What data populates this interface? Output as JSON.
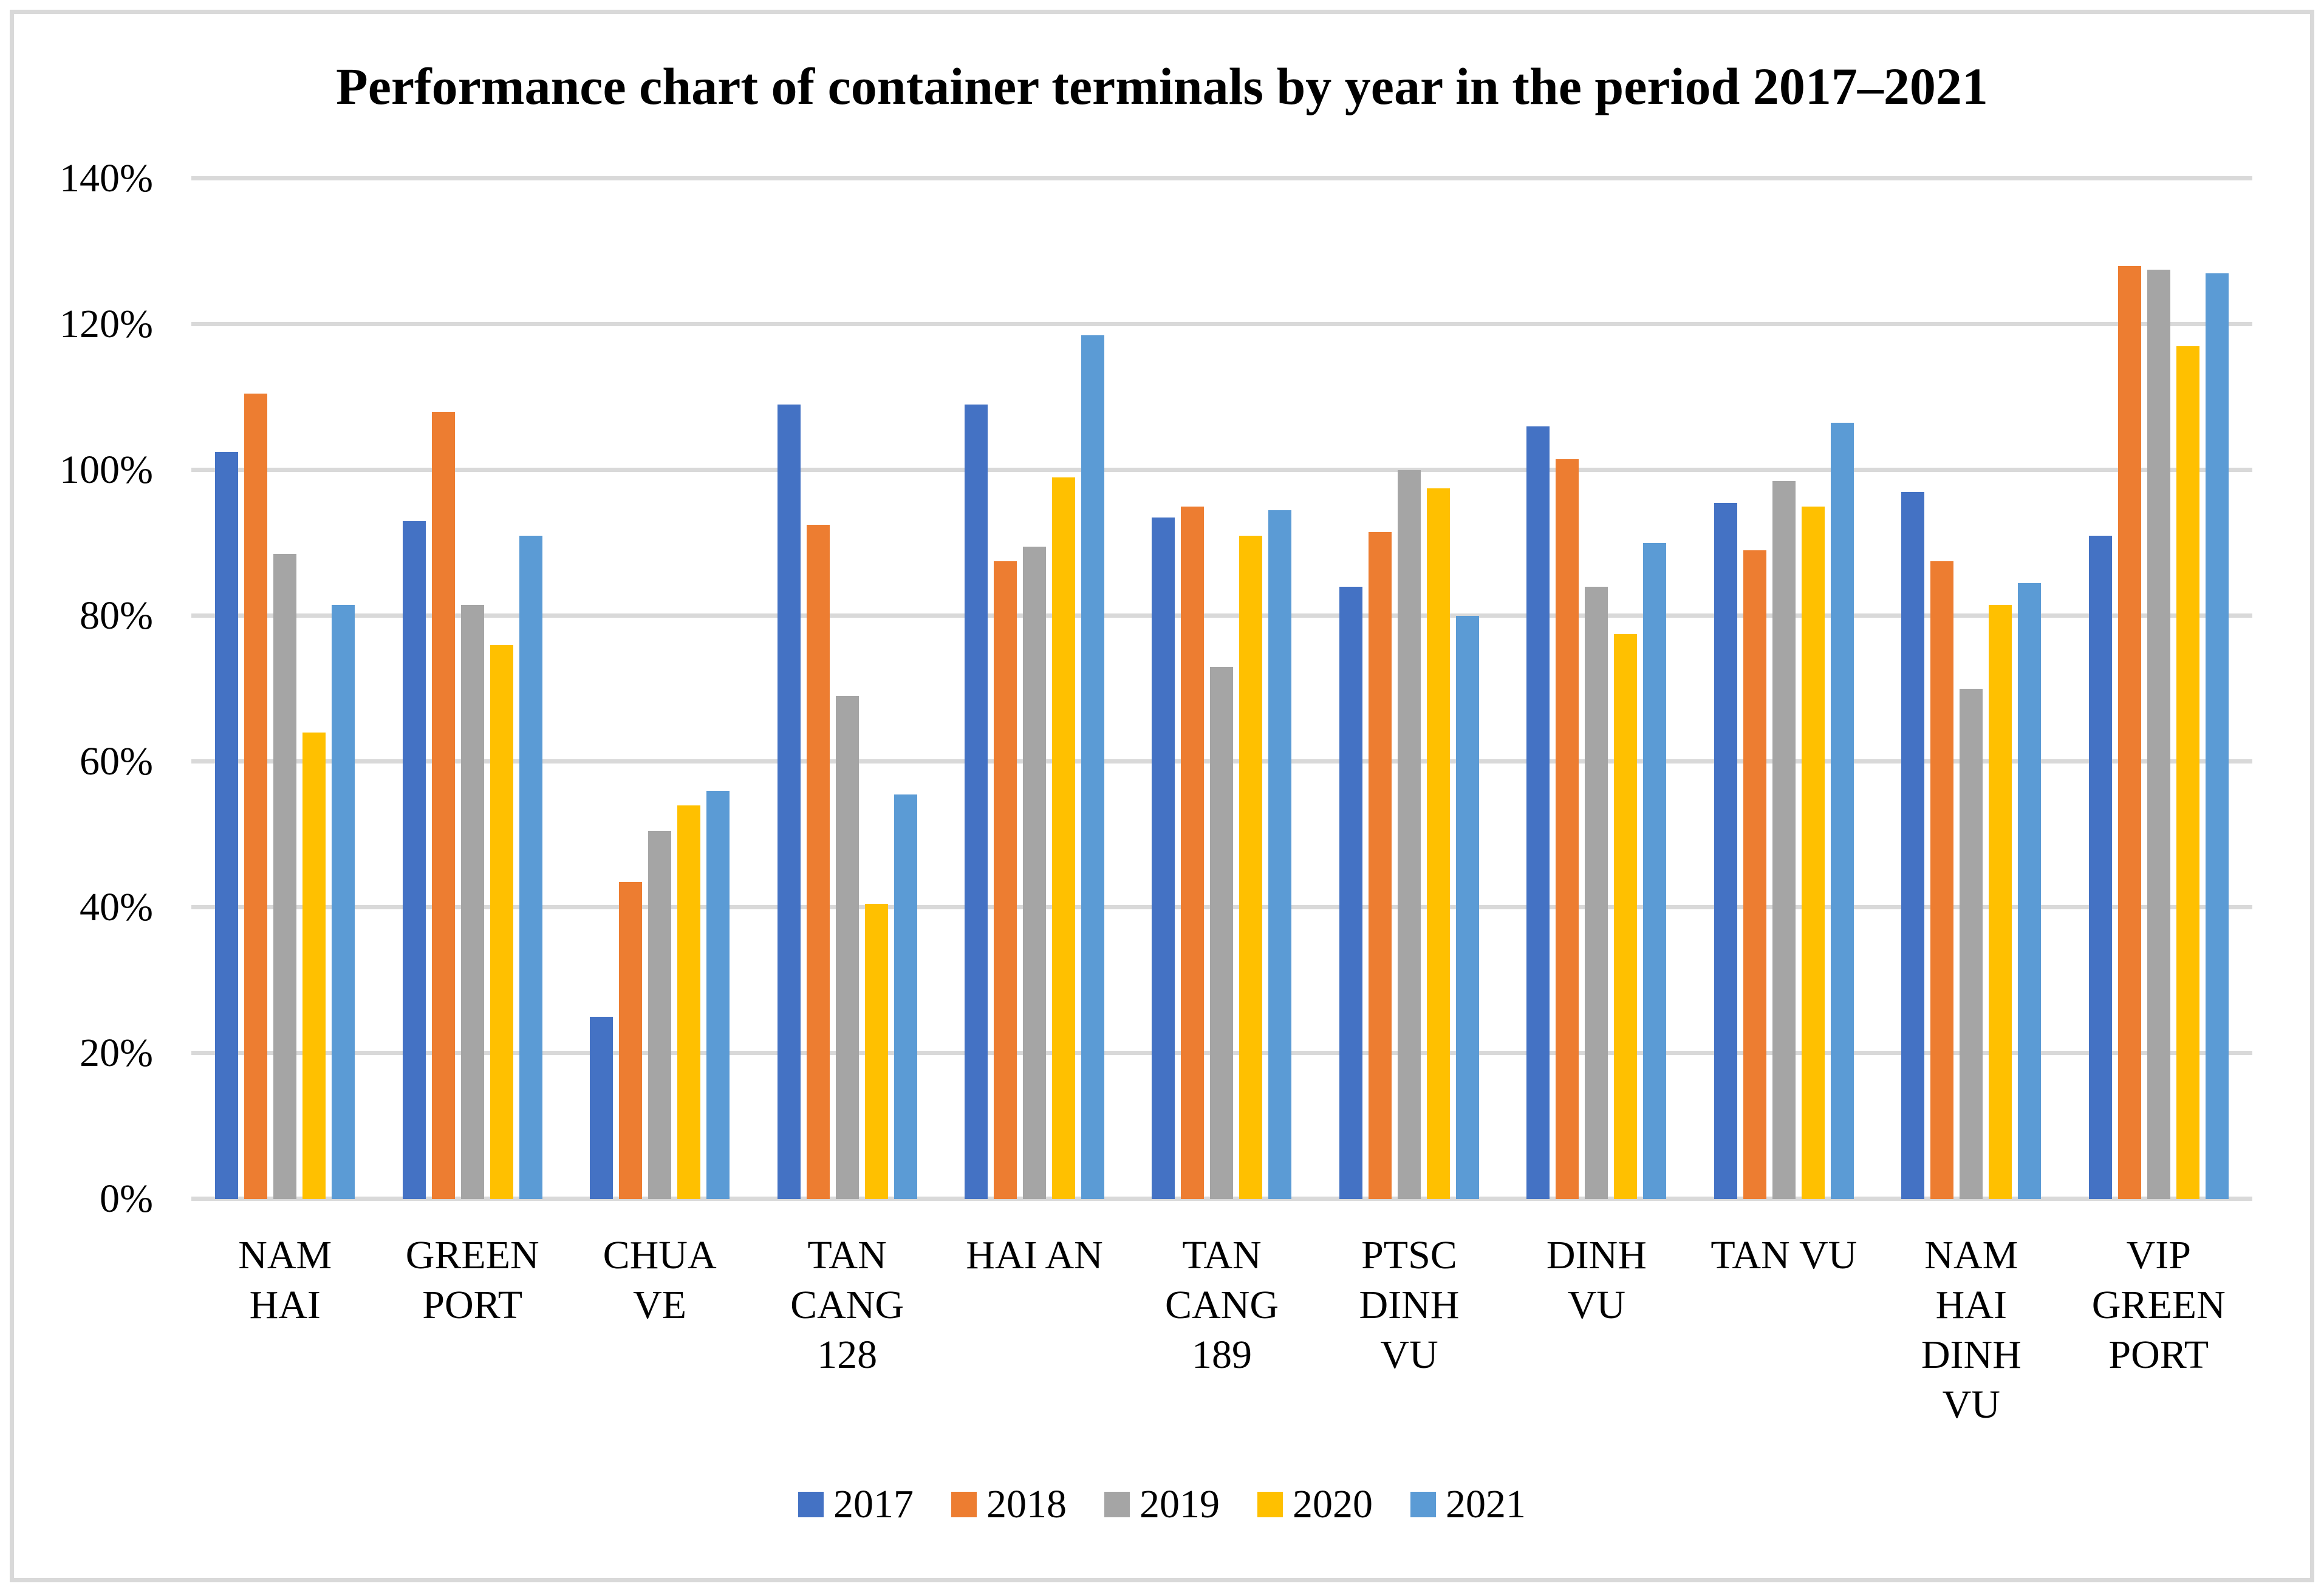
{
  "chart_data": {
    "type": "bar",
    "title": "Performance chart of container terminals by year in the period 2017–2021",
    "xlabel": "",
    "ylabel": "",
    "ylim": [
      0,
      140
    ],
    "y_tick_step": 20,
    "y_tick_labels": [
      "0%",
      "20%",
      "40%",
      "60%",
      "80%",
      "100%",
      "120%",
      "140%"
    ],
    "grid": "horizontal",
    "legend_position": "bottom",
    "value_unit": "%",
    "categories": [
      "NAM HAI",
      "GREEN PORT",
      "CHUA VE",
      "TAN CANG 128",
      "HAI AN",
      "TAN CANG 189",
      "PTSC DINH VU",
      "DINH VU",
      "TAN VU",
      "NAM HAI DINH VU",
      "VIP GREEN PORT"
    ],
    "category_label_lines": [
      [
        "NAM",
        "HAI"
      ],
      [
        "GREEN",
        "PORT"
      ],
      [
        "CHUA",
        "VE"
      ],
      [
        "TAN",
        "CANG",
        "128"
      ],
      [
        "HAI AN"
      ],
      [
        "TAN",
        "CANG",
        "189"
      ],
      [
        "PTSC",
        "DINH",
        "VU"
      ],
      [
        "DINH",
        "VU"
      ],
      [
        "TAN VU"
      ],
      [
        "NAM",
        "HAI",
        "DINH",
        "VU"
      ],
      [
        "VIP",
        "GREEN",
        "PORT"
      ]
    ],
    "series": [
      {
        "name": "2017",
        "color": "#4472C4",
        "values": [
          102.5,
          93,
          25,
          109,
          109,
          93.5,
          84,
          106,
          95.5,
          97,
          91
        ]
      },
      {
        "name": "2018",
        "color": "#ED7D31",
        "values": [
          110.5,
          108,
          43.5,
          92.5,
          87.5,
          95,
          91.5,
          101.5,
          89,
          87.5,
          128
        ]
      },
      {
        "name": "2019",
        "color": "#A5A5A5",
        "values": [
          88.5,
          81.5,
          50.5,
          69,
          89.5,
          73,
          100,
          84,
          98.5,
          70,
          127.5
        ]
      },
      {
        "name": "2020",
        "color": "#FFC000",
        "values": [
          64,
          76,
          54,
          40.5,
          99,
          91,
          97.5,
          77.5,
          95,
          81.5,
          117
        ]
      },
      {
        "name": "2021",
        "color": "#5B9BD5",
        "values": [
          81.5,
          91,
          56,
          55.5,
          118.5,
          94.5,
          80,
          90,
          106.5,
          84.5,
          127
        ]
      }
    ],
    "colors": {
      "gridline": "#D9D9D9",
      "frame_border": "#D9D9D9",
      "background": "#FFFFFF",
      "text": "#000000"
    }
  }
}
